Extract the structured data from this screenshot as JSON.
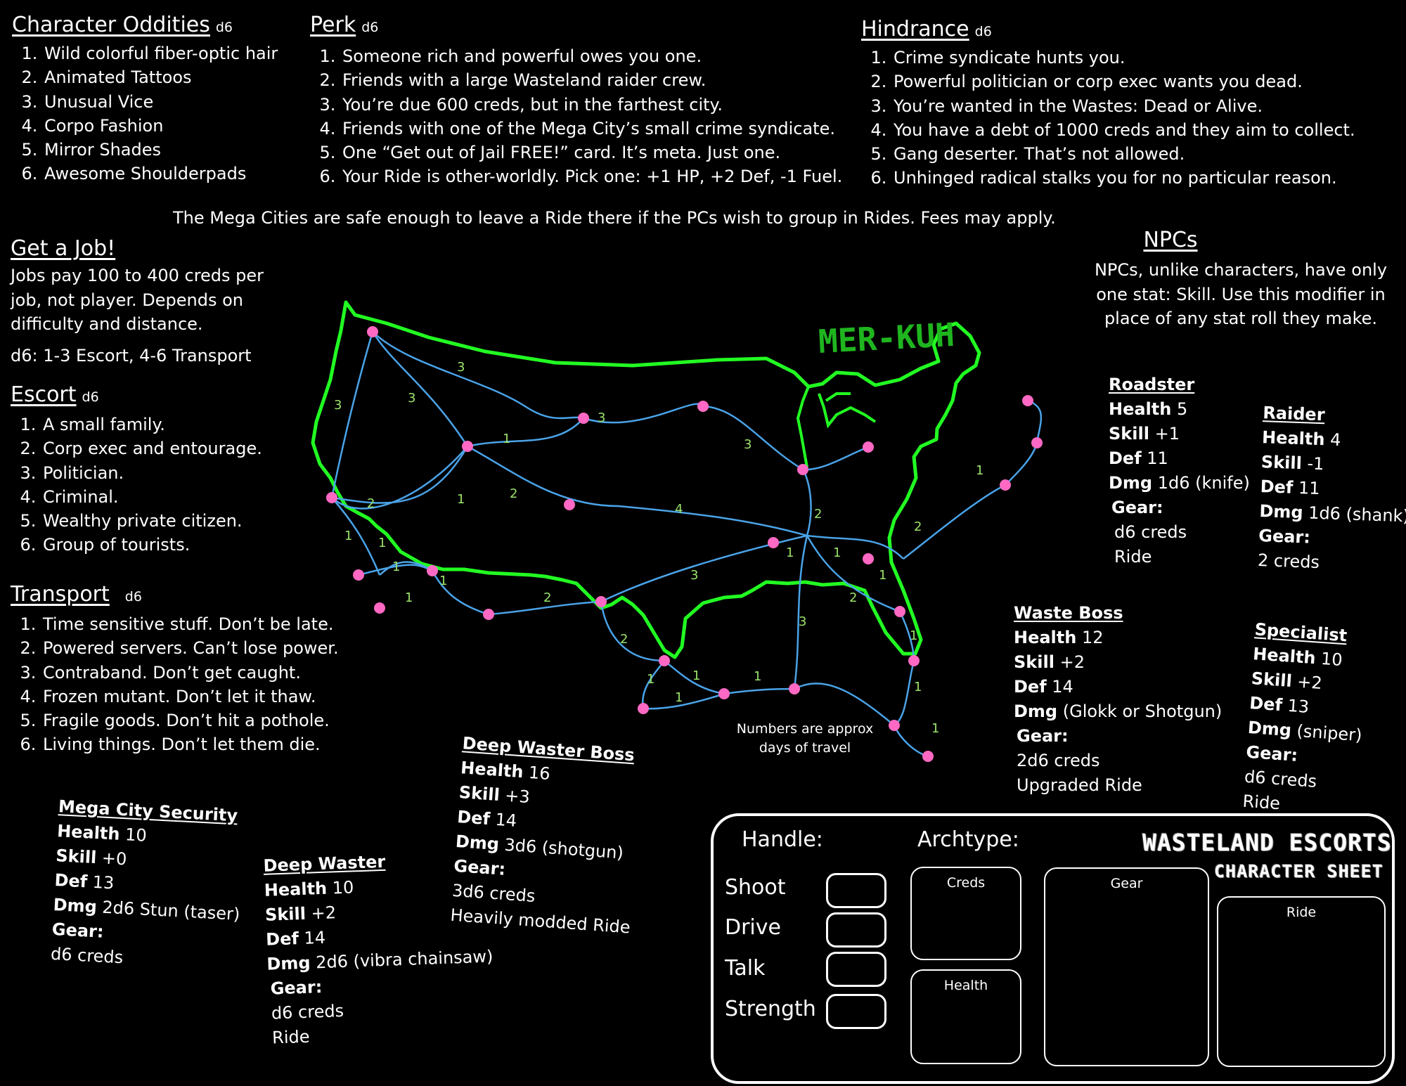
{
  "oddities": {
    "title": "Character Oddities",
    "die": "d6",
    "items": [
      "Wild colorful fiber-optic hair",
      "Animated Tattoos",
      "Unusual Vice",
      "Corpo Fashion",
      "Mirror Shades",
      "Awesome Shoulderpads"
    ]
  },
  "perk": {
    "title": "Perk",
    "die": "d6",
    "items": [
      "Someone rich and powerful owes you one.",
      "Friends with a large Wasteland raider crew.",
      "You’re due 600 creds, but in the farthest city.",
      "Friends with one of the Mega City’s small crime syndicate.",
      "One “Get out of Jail FREE!” card. It’s meta. Just one.",
      "Your Ride is other-worldly. Pick one: +1 HP, +2 Def, -1 Fuel."
    ]
  },
  "hindrance": {
    "title": "Hindrance",
    "die": "d6",
    "items": [
      "Crime syndicate hunts you.",
      "Powerful politician or corp exec wants you dead.",
      "You’re wanted in the Wastes: Dead or Alive.",
      "You have a debt of 1000 creds and they aim to collect.",
      "Gang deserter. That’s not allowed.",
      "Unhinged radical stalks you for no particular reason."
    ]
  },
  "mega_note": "The Mega Cities are safe enough to leave a Ride there if the PCs wish to group in Rides. Fees may apply.",
  "job": {
    "title": "Get a Job!",
    "text": "Jobs pay 100 to 400 creds per job, not player. Depends on difficulty and distance.",
    "roll": "d6: 1-3 Escort, 4-6 Transport"
  },
  "escort": {
    "title": "Escort",
    "die": "d6",
    "items": [
      "A small family.",
      "Corp exec and entourage.",
      "Politician.",
      "Criminal.",
      "Wealthy private citizen.",
      "Group of tourists."
    ]
  },
  "transport": {
    "title": "Transport",
    "die": "d6",
    "items": [
      "Time sensitive stuff. Don’t be late.",
      "Powered servers. Can’t lose power.",
      "Contraband. Don’t get caught.",
      "Frozen mutant. Don’t let it thaw.",
      "Fragile goods. Don’t hit a pothole.",
      "Living things. Don’t let them die."
    ]
  },
  "npcs": {
    "title": "NPCs",
    "text": "NPCs, unlike characters, have only one stat: Skill. Use this modifier in place of any stat roll they make."
  },
  "map": {
    "label": "MER-KUH",
    "note": "Numbers are approx days of travel",
    "land_color": "#22ff22",
    "route_color": "#4aa3e8",
    "city_color": "#ff69c4",
    "days": [
      "3",
      "3",
      "3",
      "1",
      "3",
      "3",
      "2",
      "1",
      "2",
      "4",
      "1",
      "1",
      "1",
      "1",
      "1",
      "2",
      "3",
      "1",
      "1",
      "2",
      "1",
      "2",
      "2",
      "1",
      "2",
      "3",
      "1",
      "1",
      "1",
      "1",
      "1",
      "1",
      "1"
    ]
  },
  "labels": {
    "health": "Health",
    "skill": "Skill",
    "def": "Def",
    "dmg": "Dmg",
    "gear": "Gear:"
  },
  "roadster": {
    "title": "Roadster",
    "health": "5",
    "skill": "+1",
    "def": "11",
    "dmg": "1d6 (knife)",
    "gear": [
      "d6 creds",
      "Ride"
    ]
  },
  "raider": {
    "title": "Raider",
    "health": "4",
    "skill": "-1",
    "def": "11",
    "dmg": "1d6 (shank)",
    "gear": [
      "2 creds"
    ]
  },
  "waste_boss": {
    "title": "Waste Boss",
    "health": "12",
    "skill": "+2",
    "def": "14",
    "dmg": "(Glokk or Shotgun)",
    "gear": [
      "2d6 creds",
      "Upgraded Ride"
    ]
  },
  "specialist": {
    "title": "Specialist",
    "health": "10",
    "skill": "+2",
    "def": "13",
    "dmg": "(sniper)",
    "gear": [
      "d6 creds",
      "Ride"
    ]
  },
  "security": {
    "title": "Mega City Security",
    "health": "10",
    "skill": "+0",
    "def": "13",
    "dmg": "2d6 Stun (taser)",
    "gear": [
      "d6 creds"
    ]
  },
  "deep_waster": {
    "title": "Deep Waster",
    "health": "10",
    "skill": "+2",
    "def": "14",
    "dmg": "2d6 (vibra chainsaw)",
    "gear": [
      "d6 creds",
      "Ride"
    ]
  },
  "deep_boss": {
    "title": "Deep Waster Boss",
    "health": "16",
    "skill": "+3",
    "def": "14",
    "dmg": "3d6 (shotgun)",
    "gear": [
      "3d6 creds",
      "Heavily modded Ride"
    ]
  },
  "sheet": {
    "handle": "Handle:",
    "archtype": "Archtype:",
    "brand_line1": "WASTELAND ESCORTS",
    "brand_line2": "CHARACTER SHEET",
    "stats": [
      "Shoot",
      "Drive",
      "Talk",
      "Strength"
    ],
    "creds": "Creds",
    "health": "Health",
    "gear": "Gear",
    "ride": "Ride"
  }
}
